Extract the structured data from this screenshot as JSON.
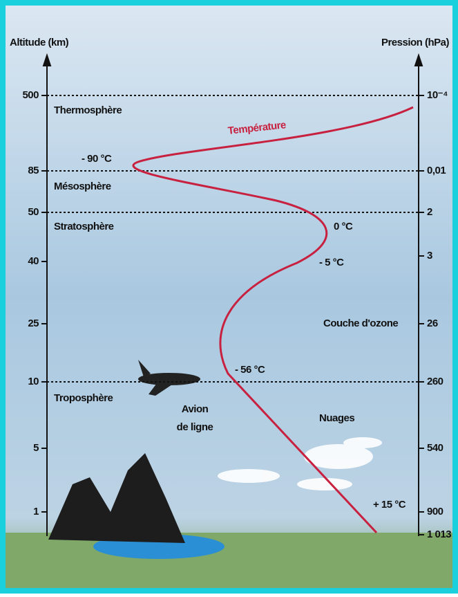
{
  "axes": {
    "left_title": "Altitude (km)",
    "right_title": "Pression (hPa)",
    "left_ticks": [
      "500",
      "85",
      "50",
      "40",
      "25",
      "10",
      "5",
      "1"
    ],
    "right_ticks": [
      "10⁻⁴",
      "0,01",
      "2",
      "3",
      "26",
      "260",
      "540",
      "900",
      "1 013"
    ]
  },
  "layers": [
    "Thermosphère",
    "Mésosphère",
    "Stratosphère",
    "Troposphère"
  ],
  "curve": {
    "label": "Température",
    "temperatures": [
      "- 90 °C",
      "0 °C",
      "- 5 °C",
      "- 56 °C",
      "+ 15 °C"
    ]
  },
  "annotations": {
    "ozone": "Couche d'ozone",
    "clouds": "Nuages",
    "plane": [
      "Avion",
      "de ligne"
    ]
  }
}
